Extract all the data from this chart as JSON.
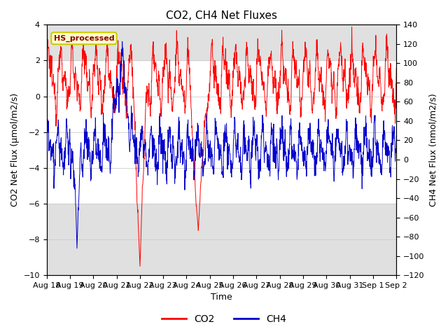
{
  "title": "CO2, CH4 Net Fluxes",
  "xlabel": "Time",
  "ylabel_left": "CO2 Net Flux (μmol/m2/s)",
  "ylabel_right": "CH4 Net Flux (nmol/m2/s)",
  "ylim_left": [
    -10,
    4
  ],
  "ylim_right": [
    -120,
    140
  ],
  "yticks_left": [
    -10,
    -8,
    -6,
    -4,
    -2,
    0,
    2,
    4
  ],
  "yticks_right": [
    -120,
    -100,
    -80,
    -60,
    -40,
    -20,
    0,
    20,
    40,
    60,
    80,
    100,
    120,
    140
  ],
  "xtick_labels": [
    "Aug 18",
    "Aug 19",
    "Aug 20",
    "Aug 21",
    "Aug 22",
    "Aug 23",
    "Aug 24",
    "Aug 25",
    "Aug 26",
    "Aug 27",
    "Aug 28",
    "Aug 29",
    "Aug 30",
    "Aug 31",
    "Sep 1",
    "Sep 2"
  ],
  "co2_color": "#FF0000",
  "ch4_color": "#0000CC",
  "annotation_text": "HS_processed",
  "annotation_bg": "#FFFFCC",
  "annotation_border": "#CCCC00",
  "annotation_text_color": "#8B0000",
  "legend_co2_label": "CO2",
  "legend_ch4_label": "CH4",
  "background_color": "#FFFFFF",
  "grid_color": "#CCCCCC",
  "band1_color": "#E0E0E0",
  "seed": 12345,
  "n_points": 1500,
  "n_days": 15
}
